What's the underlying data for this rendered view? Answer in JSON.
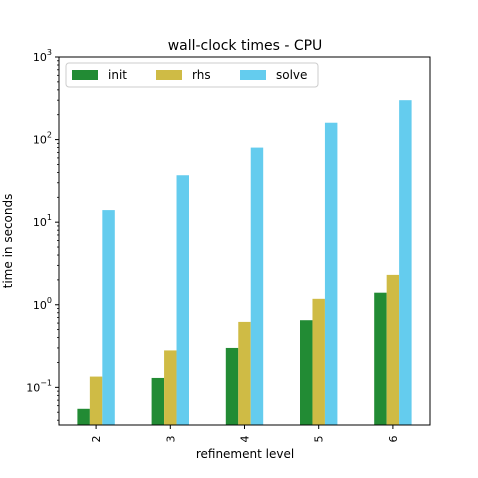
{
  "chart_data": {
    "type": "bar",
    "title": "wall-clock times - CPU",
    "xlabel": "refinement level",
    "ylabel": "time in seconds",
    "yscale": "log",
    "ylim": [
      0.035,
      1000
    ],
    "categories": [
      "2",
      "3",
      "4",
      "5",
      "6"
    ],
    "series": [
      {
        "name": "init",
        "color": "#228b34",
        "values": [
          0.055,
          0.13,
          0.3,
          0.65,
          1.4
        ]
      },
      {
        "name": "rhs",
        "color": "#cfbb45",
        "values": [
          0.135,
          0.28,
          0.62,
          1.18,
          2.3
        ]
      },
      {
        "name": "solve",
        "color": "#64ccee",
        "values": [
          14,
          37,
          80,
          160,
          300
        ]
      }
    ],
    "yticks": [
      {
        "base": "10",
        "exp": "−1",
        "value": 0.1
      },
      {
        "base": "10",
        "exp": "0",
        "value": 1
      },
      {
        "base": "10",
        "exp": "1",
        "value": 10
      },
      {
        "base": "10",
        "exp": "2",
        "value": 100
      },
      {
        "base": "10",
        "exp": "3",
        "value": 1000
      }
    ],
    "legend_position": "top-left",
    "grid": false
  }
}
